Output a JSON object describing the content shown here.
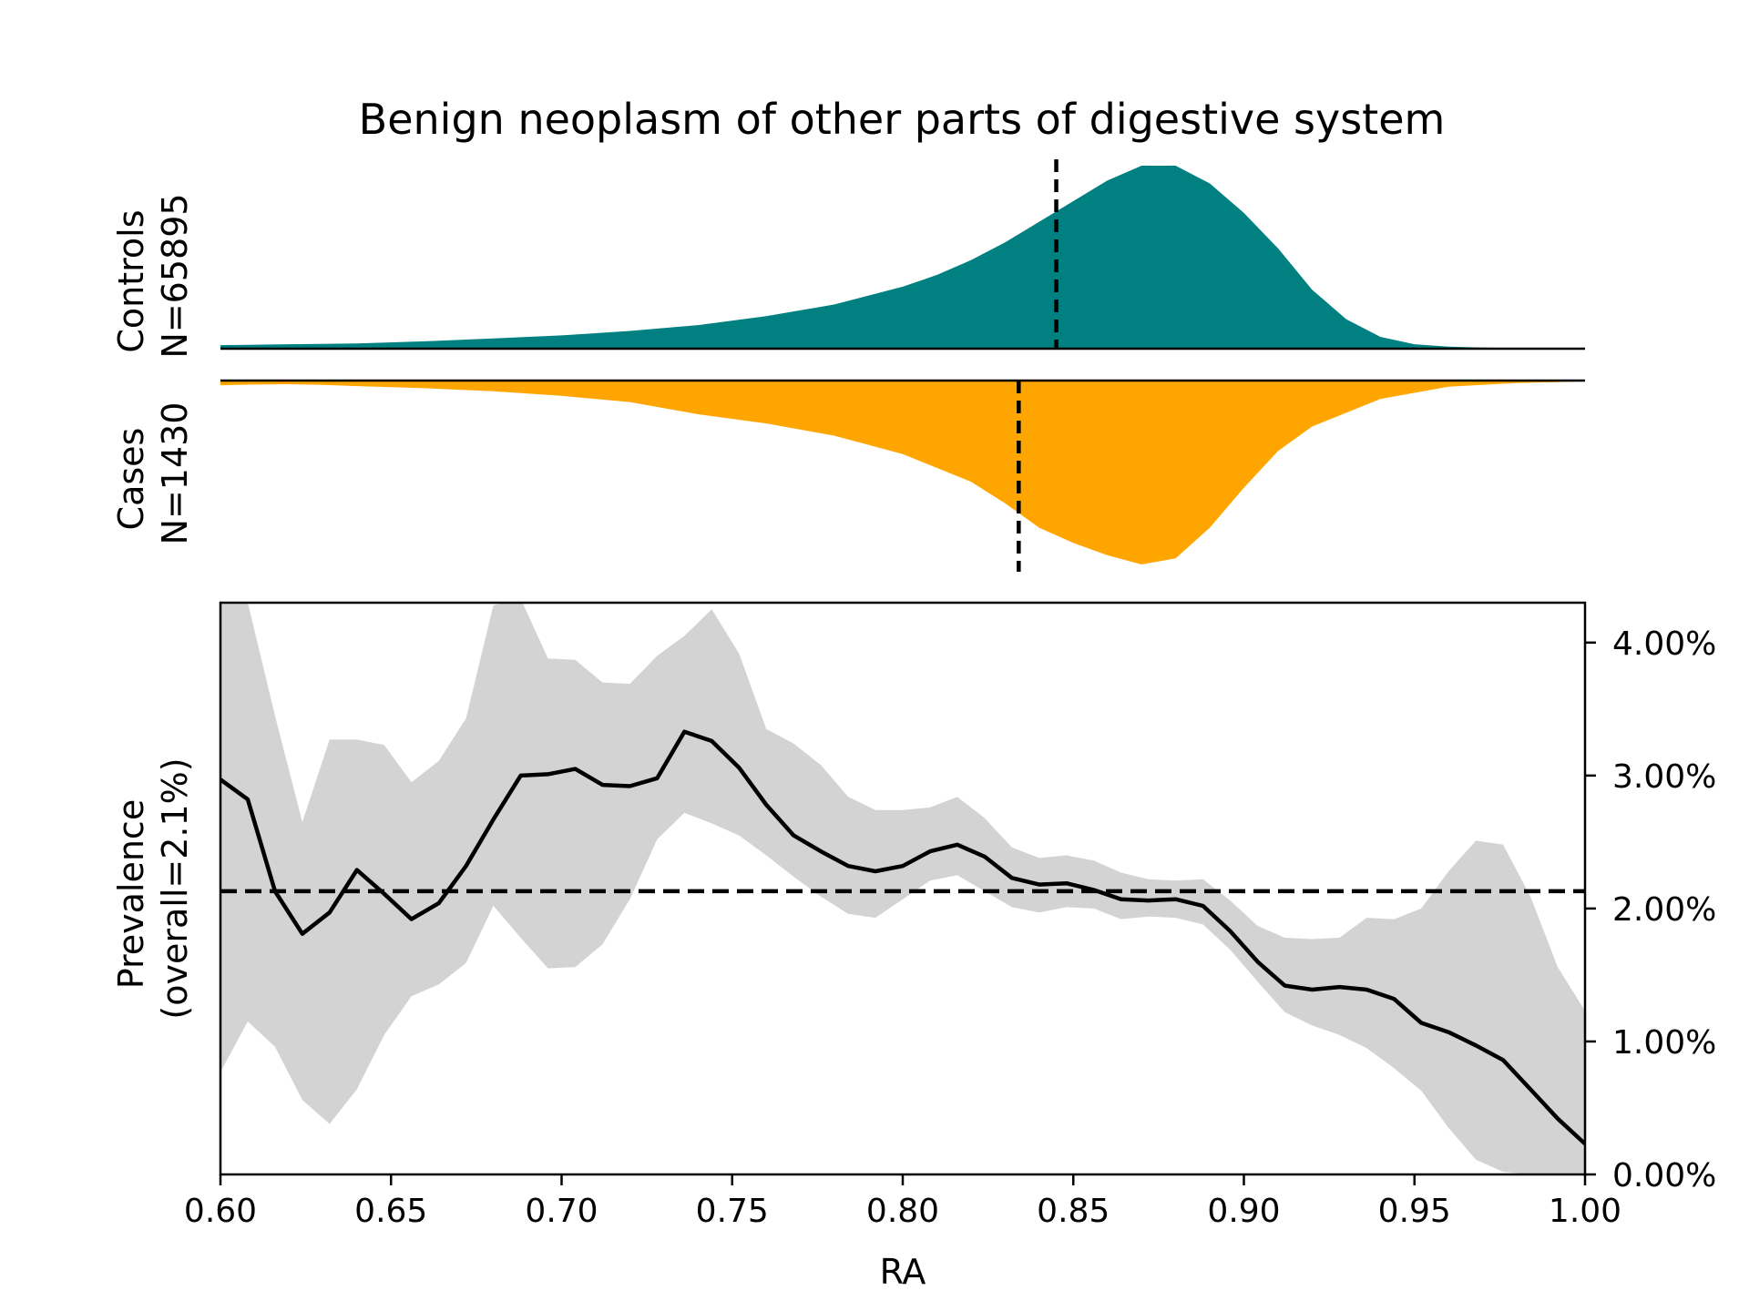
{
  "chart_data": {
    "title": "Benign neoplasm of other parts of digestive system",
    "colors": {
      "controls": "#008080",
      "cases": "#FFA500",
      "band": "#D3D3D3",
      "line": "#000000"
    },
    "controls": {
      "label_line1": "Controls",
      "label_line2": "N=65895",
      "type": "area",
      "median": 0.845,
      "x": [
        0.6,
        0.62,
        0.64,
        0.66,
        0.68,
        0.7,
        0.72,
        0.74,
        0.76,
        0.78,
        0.8,
        0.81,
        0.82,
        0.83,
        0.84,
        0.85,
        0.86,
        0.87,
        0.88,
        0.89,
        0.9,
        0.91,
        0.92,
        0.93,
        0.94,
        0.95,
        0.96,
        0.97,
        0.98,
        1.0
      ],
      "density": [
        0.012,
        0.015,
        0.018,
        0.025,
        0.035,
        0.045,
        0.06,
        0.08,
        0.11,
        0.15,
        0.21,
        0.25,
        0.3,
        0.36,
        0.43,
        0.5,
        0.57,
        0.62,
        0.62,
        0.56,
        0.46,
        0.34,
        0.2,
        0.1,
        0.04,
        0.015,
        0.007,
        0.004,
        0.002,
        0.001
      ]
    },
    "cases": {
      "label_line1": "Cases",
      "label_line2": "N=1430",
      "type": "area",
      "median": 0.834,
      "x": [
        0.6,
        0.61,
        0.62,
        0.63,
        0.64,
        0.66,
        0.68,
        0.7,
        0.72,
        0.74,
        0.76,
        0.78,
        0.8,
        0.82,
        0.83,
        0.84,
        0.85,
        0.86,
        0.87,
        0.88,
        0.89,
        0.9,
        0.91,
        0.92,
        0.94,
        0.96,
        0.98,
        1.0
      ],
      "density": [
        0.015,
        0.013,
        0.012,
        0.014,
        0.018,
        0.025,
        0.035,
        0.05,
        0.07,
        0.11,
        0.14,
        0.18,
        0.24,
        0.33,
        0.4,
        0.48,
        0.53,
        0.57,
        0.6,
        0.58,
        0.48,
        0.35,
        0.23,
        0.15,
        0.06,
        0.02,
        0.008,
        0.003
      ]
    },
    "prevalence": {
      "type": "line",
      "ylabel_line1": "Prevalence",
      "ylabel_line2": "(overall=2.1%)",
      "xlabel": "RA",
      "overall": 2.13,
      "ylim": [
        0,
        4.3
      ],
      "xlim": [
        0.6,
        1.0
      ],
      "x_ticks": [
        "0.60",
        "0.65",
        "0.70",
        "0.75",
        "0.80",
        "0.85",
        "0.90",
        "0.95",
        "1.00"
      ],
      "y_ticks": [
        "0.00%",
        "1.00%",
        "2.00%",
        "3.00%",
        "4.00%"
      ],
      "x": [
        0.6,
        0.608,
        0.616,
        0.624,
        0.632,
        0.64,
        0.648,
        0.656,
        0.664,
        0.672,
        0.68,
        0.688,
        0.696,
        0.704,
        0.712,
        0.72,
        0.728,
        0.736,
        0.744,
        0.752,
        0.76,
        0.768,
        0.776,
        0.784,
        0.792,
        0.8,
        0.808,
        0.816,
        0.824,
        0.832,
        0.84,
        0.848,
        0.856,
        0.864,
        0.872,
        0.88,
        0.888,
        0.896,
        0.904,
        0.912,
        0.92,
        0.928,
        0.936,
        0.944,
        0.952,
        0.96,
        0.968,
        0.976,
        0.984,
        0.992,
        1.0
      ],
      "y": [
        2.97,
        2.82,
        2.13,
        1.81,
        1.97,
        2.29,
        2.11,
        1.92,
        2.04,
        2.32,
        2.67,
        3.0,
        3.01,
        3.05,
        2.93,
        2.92,
        2.98,
        3.33,
        3.26,
        3.06,
        2.78,
        2.55,
        2.43,
        2.32,
        2.28,
        2.32,
        2.43,
        2.48,
        2.39,
        2.23,
        2.18,
        2.19,
        2.14,
        2.07,
        2.06,
        2.07,
        2.02,
        1.83,
        1.6,
        1.42,
        1.39,
        1.41,
        1.39,
        1.32,
        1.14,
        1.07,
        0.97,
        0.86,
        0.64,
        0.42,
        0.23
      ],
      "ci_lower": [
        0.77,
        1.15,
        0.96,
        0.56,
        0.38,
        0.64,
        1.05,
        1.34,
        1.43,
        1.59,
        2.02,
        1.78,
        1.55,
        1.56,
        1.73,
        2.07,
        2.52,
        2.72,
        2.64,
        2.55,
        2.4,
        2.24,
        2.09,
        1.96,
        1.93,
        2.07,
        2.21,
        2.25,
        2.13,
        2.01,
        1.97,
        2.01,
        2.0,
        1.92,
        1.94,
        1.93,
        1.88,
        1.69,
        1.45,
        1.22,
        1.12,
        1.05,
        0.95,
        0.8,
        0.63,
        0.35,
        0.11,
        0.02,
        0.0,
        0.0,
        0.0
      ],
      "ci_upper": [
        4.3,
        4.3,
        3.45,
        2.65,
        3.27,
        3.27,
        3.23,
        2.95,
        3.11,
        3.43,
        4.28,
        4.33,
        3.88,
        3.87,
        3.7,
        3.69,
        3.9,
        4.05,
        4.25,
        3.92,
        3.35,
        3.24,
        3.08,
        2.84,
        2.74,
        2.74,
        2.76,
        2.84,
        2.68,
        2.46,
        2.38,
        2.4,
        2.36,
        2.27,
        2.22,
        2.21,
        2.22,
        2.06,
        1.87,
        1.78,
        1.77,
        1.78,
        1.93,
        1.92,
        2.0,
        2.28,
        2.51,
        2.48,
        2.09,
        1.56,
        1.23
      ]
    }
  }
}
